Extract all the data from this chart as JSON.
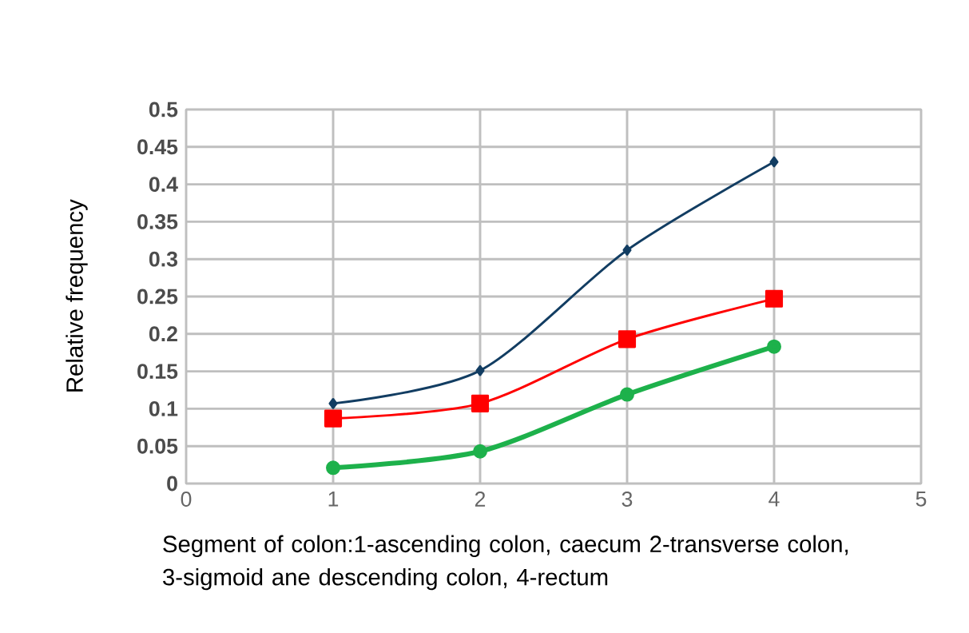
{
  "chart_data": {
    "type": "line",
    "ylabel": "Relative frequency",
    "xlabel": "Segment of colon:1-ascending colon, caecum 2-transverse colon, 3-sigmoid ane descending colon, 4-rectum",
    "x": [
      1,
      2,
      3,
      4
    ],
    "series": [
      {
        "color": "#123d62",
        "marker": "diamond",
        "values": [
          0.107,
          0.151,
          0.312,
          0.43
        ]
      },
      {
        "color": "#ff0000",
        "marker": "square",
        "values": [
          0.087,
          0.107,
          0.193,
          0.247
        ]
      },
      {
        "color": "#1db14b",
        "marker": "circle",
        "values": [
          0.021,
          0.043,
          0.119,
          0.183
        ]
      }
    ],
    "xlim": [
      0,
      5
    ],
    "xticks": [
      0,
      1,
      2,
      3,
      4,
      5
    ],
    "ylim": [
      0,
      0.5
    ],
    "yticks": [
      0,
      0.05,
      0.1,
      0.15,
      0.2,
      0.25,
      0.3,
      0.35,
      0.4,
      0.45,
      0.5
    ],
    "grid": true
  }
}
